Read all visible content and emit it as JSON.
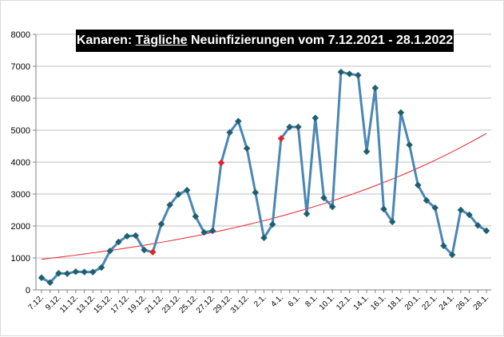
{
  "chart_data": {
    "type": "line",
    "title": {
      "prefix": "Kanaren: ",
      "underlined": "Tägliche",
      "suffix": " Neuinfizierungen vom 7.12.2021 - 28.1.2022"
    },
    "xlabel": "",
    "ylabel": "",
    "ylim": [
      0,
      8000
    ],
    "yticks": [
      "0",
      "1000",
      "2000",
      "3000",
      "4000",
      "5000",
      "6000",
      "7000",
      "8000"
    ],
    "grid": "horizontal",
    "legend": "none",
    "x": [
      "7.12.",
      "8.12.",
      "9.12.",
      "10.12.",
      "11.12.",
      "12.12.",
      "13.12.",
      "14.12.",
      "15.12.",
      "16.12.",
      "17.12.",
      "18.12.",
      "19.12.",
      "20.12.",
      "21.12.",
      "22.12.",
      "23.12.",
      "24.12.",
      "25.12.",
      "26.12.",
      "27.12.",
      "28.12.",
      "29.12.",
      "30.12.",
      "31.12.",
      "1.1.",
      "2.1.",
      "3.1.",
      "4.1.",
      "5.1.",
      "6.1.",
      "7.1.",
      "8.1.",
      "9.1.",
      "10.1.",
      "11.1.",
      "12.1.",
      "13.1.",
      "14.1.",
      "15.1.",
      "16.1.",
      "17.1.",
      "18.1.",
      "19.1.",
      "20.1.",
      "21.1.",
      "22.1.",
      "23.1.",
      "24.1.",
      "25.1.",
      "26.1.",
      "27.1.",
      "28.1."
    ],
    "xtick_labels_shown": [
      "7.12.",
      "9.12.",
      "11.12.",
      "13.12.",
      "15.12.",
      "17.12.",
      "19.12.",
      "21.12.",
      "23.12.",
      "25.12.",
      "27.12.",
      "29.12.",
      "31.12.",
      "2.1.",
      "4.1.",
      "6.1.",
      "8.1.",
      "10.1.",
      "12.1.",
      "14.1.",
      "16.1.",
      "18.1.",
      "20.1.",
      "22.1.",
      "24.1.",
      "26.1.",
      "28.1."
    ],
    "series": [
      {
        "values": [
          380,
          230,
          520,
          510,
          570,
          560,
          560,
          700,
          1220,
          1500,
          1680,
          1700,
          1250,
          1180,
          2060,
          2660,
          2990,
          3120,
          2300,
          1800,
          1850,
          3980,
          4930,
          5280,
          4430,
          3050,
          1630,
          2050,
          4740,
          5100,
          5100,
          2380,
          5380,
          2880,
          2600,
          6820,
          6760,
          6720,
          4330,
          6320,
          2530,
          2130,
          5550,
          4540,
          3280,
          2800,
          2570,
          1380,
          1100,
          2500,
          2350,
          2020,
          1850
        ],
        "color": "#4a86b6",
        "marker_color": "#1f5f6e",
        "highlight_indices": [
          13,
          21,
          28
        ],
        "highlight_color": "#e8202a"
      }
    ],
    "trendline": {
      "type": "exponential",
      "color": "#e8202a",
      "start_value": 960,
      "end_value": 4900
    }
  }
}
